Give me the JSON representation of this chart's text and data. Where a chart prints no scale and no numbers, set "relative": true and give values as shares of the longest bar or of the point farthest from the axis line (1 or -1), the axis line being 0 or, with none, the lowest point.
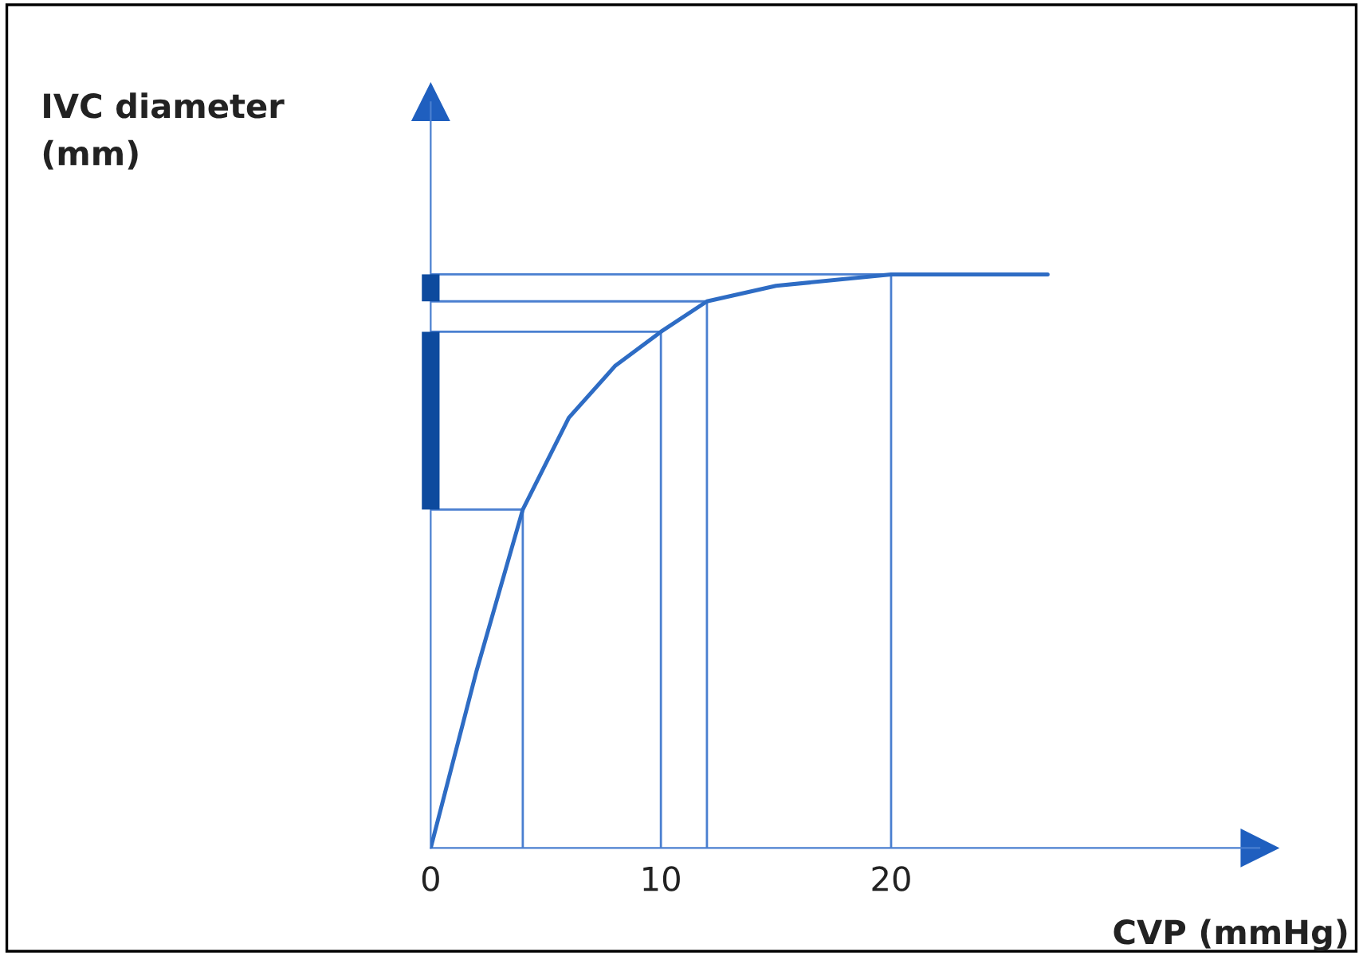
{
  "chart_data": {
    "type": "line",
    "relative": true,
    "xlabel": "CVP (mmHg)",
    "annotations": [
      "IVC diameter\n(mm)"
    ],
    "xlim": [
      0,
      36
    ],
    "xticks": [
      0,
      10,
      20
    ],
    "series": [
      {
        "color": "#2e6cc4",
        "x": [
          0,
          2,
          4,
          6,
          8,
          10,
          12,
          15,
          20,
          26.8
        ],
        "values": [
          0,
          0.31,
          0.59,
          0.75,
          0.84,
          0.9,
          0.953,
          0.98,
          1.0,
          1.0
        ]
      }
    ],
    "ref_lines": [
      {
        "axis": "x",
        "value": 4,
        "color": "#4a7fd0"
      },
      {
        "axis": "x",
        "value": 10,
        "color": "#4a7fd0"
      },
      {
        "axis": "x",
        "value": 12,
        "color": "#4a7fd0"
      },
      {
        "axis": "x",
        "value": 20,
        "color": "#4a7fd0"
      },
      {
        "axis": "y",
        "value": 0.59,
        "color": "#4a7fd0"
      },
      {
        "axis": "y",
        "value": 0.9,
        "color": "#4a7fd0"
      },
      {
        "axis": "y",
        "value": 0.953,
        "color": "#4a7fd0"
      },
      {
        "axis": "y",
        "value": 1.0,
        "color": "#4a7fd0"
      }
    ],
    "grid": false,
    "legend": false
  }
}
